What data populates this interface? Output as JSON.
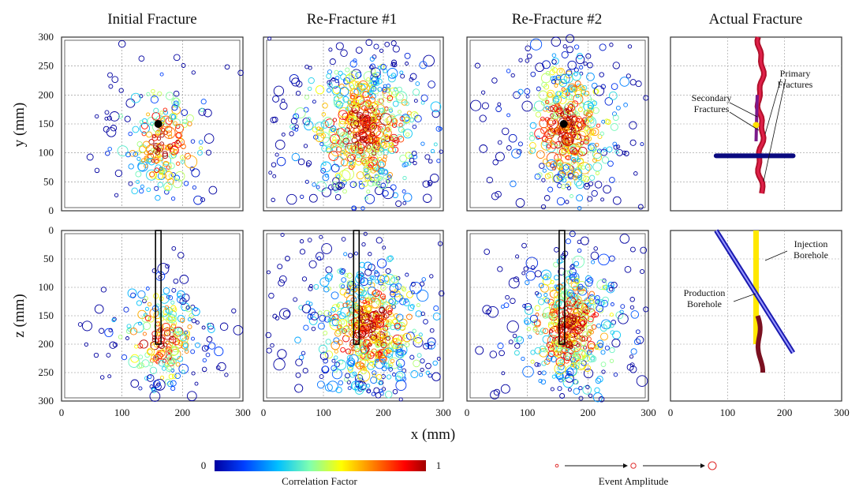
{
  "chart_data": {
    "type": "scatter",
    "column_titles": [
      "Initial Fracture",
      "Re-Fracture #1",
      "Re-Fracture #2",
      "Actual Fracture"
    ],
    "xlabel": "x (mm)",
    "ylabel_top": "y (mm)",
    "ylabel_bottom": "z (mm)",
    "xlim": [
      0,
      300
    ],
    "ylim_top": [
      0,
      300
    ],
    "zlim_bottom": [
      0,
      300
    ],
    "x_ticks": [
      "0",
      "100",
      "200",
      "300"
    ],
    "y_ticks_top": [
      "300",
      "250",
      "200",
      "150",
      "100",
      "50",
      "0"
    ],
    "z_ticks_bottom": [
      "0",
      "50",
      "100",
      "150",
      "200",
      "250",
      "300"
    ],
    "grid": true,
    "colorbar": {
      "label": "Correlation Factor",
      "min_label": "0",
      "max_label": "1",
      "colors": [
        "#0000a0",
        "#0040ff",
        "#00c0ff",
        "#80ffb0",
        "#ffff00",
        "#ff8000",
        "#ff0000",
        "#a00000"
      ]
    },
    "amplitude_legend": {
      "label": "Event Amplitude"
    },
    "panels": [
      {
        "id": "initial-top",
        "center": [
          165,
          120
        ],
        "spread": [
          45,
          60
        ],
        "count": 240,
        "borehole": null,
        "marker": [
          160,
          150
        ]
      },
      {
        "id": "refrac1-top",
        "center": [
          170,
          140
        ],
        "spread": [
          70,
          75
        ],
        "count": 700,
        "borehole": null,
        "marker": null
      },
      {
        "id": "refrac2-top",
        "center": [
          165,
          145
        ],
        "spread": [
          55,
          75
        ],
        "count": 520,
        "borehole": null,
        "marker": [
          160,
          150
        ]
      },
      {
        "id": "initial-bottom",
        "center": [
          165,
          190
        ],
        "spread": [
          45,
          55
        ],
        "count": 260,
        "borehole": [
          160,
          0,
          200
        ],
        "marker": null
      },
      {
        "id": "refrac1-bottom",
        "center": [
          175,
          170
        ],
        "spread": [
          65,
          70
        ],
        "count": 650,
        "borehole": [
          155,
          0,
          200
        ],
        "marker": null
      },
      {
        "id": "refrac2-bottom",
        "center": [
          170,
          170
        ],
        "spread": [
          55,
          70
        ],
        "count": 560,
        "borehole": [
          157,
          0,
          200
        ],
        "marker": null
      }
    ],
    "actual_top": {
      "annotations": [
        "Primary Fractures",
        "Secondary Fractures"
      ],
      "production_borehole_y": 95,
      "production_borehole_x": [
        80,
        215
      ]
    },
    "actual_bottom": {
      "annotations": [
        "Injection Borehole",
        "Production Borehole"
      ],
      "injection_borehole": {
        "x": 150,
        "z": [
          0,
          200
        ]
      },
      "production_borehole": {
        "from": [
          80,
          0
        ],
        "to": [
          215,
          215
        ]
      }
    }
  }
}
